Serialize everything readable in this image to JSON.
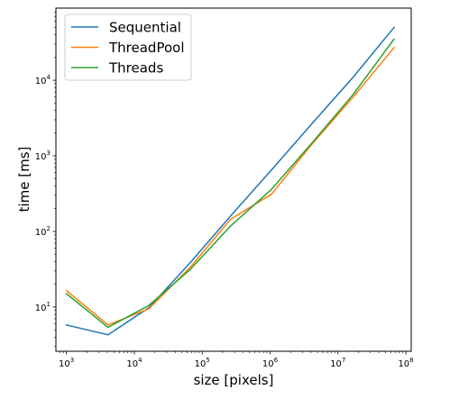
{
  "chart_data": {
    "type": "line",
    "title": "",
    "xlabel": "size [pixels]",
    "ylabel": "time [ms]",
    "xscale": "log",
    "yscale": "log",
    "xlim": [
      700,
      120000000
    ],
    "ylim": [
      2.6,
      90000
    ],
    "grid": false,
    "legend_position": "top-left",
    "x_ticks": [
      {
        "value": 1000,
        "base": "10",
        "exp": "3"
      },
      {
        "value": 10000,
        "base": "10",
        "exp": "4"
      },
      {
        "value": 100000,
        "base": "10",
        "exp": "5"
      },
      {
        "value": 1000000,
        "base": "10",
        "exp": "6"
      },
      {
        "value": 10000000,
        "base": "10",
        "exp": "7"
      },
      {
        "value": 100000000,
        "base": "10",
        "exp": "8"
      }
    ],
    "y_ticks": [
      {
        "value": 10,
        "base": "10",
        "exp": "1"
      },
      {
        "value": 100,
        "base": "10",
        "exp": "2"
      },
      {
        "value": 1000,
        "base": "10",
        "exp": "3"
      },
      {
        "value": 10000,
        "base": "10",
        "exp": "4"
      }
    ],
    "series": [
      {
        "name": "Sequential",
        "color": "#1f77b4",
        "x": [
          1000,
          4096,
          16384,
          65536,
          262144,
          1048576,
          4194304,
          16777216,
          67108864
        ],
        "y": [
          5.8,
          4.3,
          9.8,
          38,
          160,
          650,
          2700,
          11000,
          50000
        ]
      },
      {
        "name": "ThreadPool",
        "color": "#ff7f0e",
        "x": [
          1000,
          4096,
          16384,
          65536,
          262144,
          1048576,
          4194304,
          16777216,
          67108864
        ],
        "y": [
          16.5,
          5.8,
          9.5,
          33,
          145,
          310,
          1450,
          6000,
          27000
        ]
      },
      {
        "name": "Threads",
        "color": "#2ca02c",
        "x": [
          1000,
          4096,
          16384,
          65536,
          262144,
          1048576,
          4194304,
          16777216,
          67108864
        ],
        "y": [
          15,
          5.4,
          10.5,
          31,
          118,
          360,
          1500,
          6500,
          35000
        ]
      }
    ]
  }
}
